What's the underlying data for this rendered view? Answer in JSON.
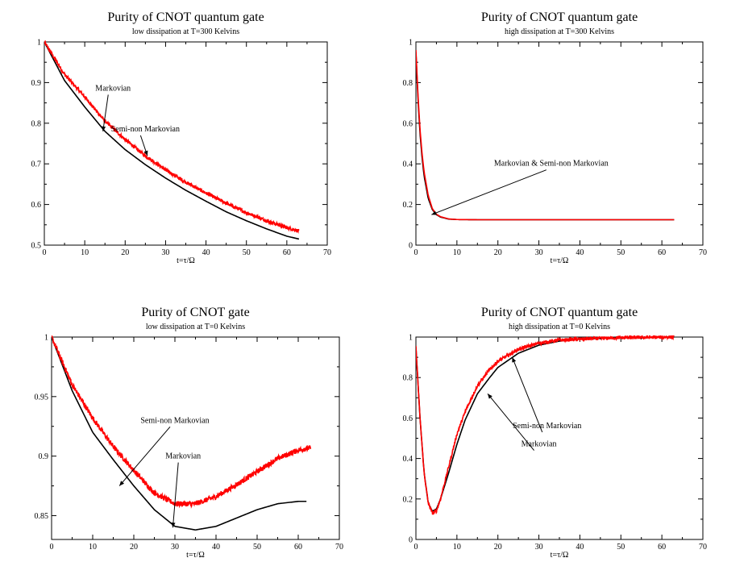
{
  "colors": {
    "markovian": "#000000",
    "semi_non_markovian": "#ff0000",
    "frame": "#000000"
  },
  "chart_data": [
    {
      "type": "line",
      "title": "Purity of CNOT quantum gate",
      "subtitle": "low dissipation at T=300 Kelvins",
      "xlabel": "t=τ/Ω",
      "ylabel": "",
      "xlim": [
        0,
        70
      ],
      "ylim": [
        0.5,
        1
      ],
      "xticks": [
        0,
        10,
        20,
        30,
        40,
        50,
        60,
        70
      ],
      "yticks": [
        0.5,
        0.6,
        0.7,
        0.8,
        0.9,
        1
      ],
      "ytick_labels": [
        "0.5",
        "0.6",
        "0.7",
        "0.8",
        "0.9",
        "1"
      ],
      "series": [
        {
          "name": "Markovian",
          "color": "#000000",
          "noise": 0,
          "x": [
            0,
            5,
            10,
            15,
            20,
            25,
            30,
            35,
            40,
            45,
            50,
            55,
            60,
            63
          ],
          "y": [
            1.0,
            0.905,
            0.84,
            0.78,
            0.735,
            0.698,
            0.665,
            0.635,
            0.608,
            0.582,
            0.56,
            0.54,
            0.522,
            0.515
          ]
        },
        {
          "name": "Semi-non Markovian",
          "color": "#ff0000",
          "noise": 0.004,
          "x": [
            0,
            5,
            10,
            15,
            20,
            25,
            30,
            35,
            40,
            45,
            50,
            55,
            60,
            63
          ],
          "y": [
            1.0,
            0.92,
            0.865,
            0.805,
            0.76,
            0.72,
            0.685,
            0.655,
            0.628,
            0.603,
            0.58,
            0.56,
            0.543,
            0.535
          ]
        }
      ],
      "annotations": [
        {
          "text": "Markovian",
          "text_xy": [
            17,
            0.88
          ],
          "arrow_to": [
            14.5,
            0.78
          ]
        },
        {
          "text": "Semi-non Markovian",
          "text_xy": [
            25,
            0.78
          ],
          "arrow_to": [
            25.5,
            0.72
          ]
        }
      ]
    },
    {
      "type": "line",
      "title": "Purity of CNOT quantum gate",
      "subtitle": "high dissipation at T=300 Kelvins",
      "xlabel": "t=τ/Ω",
      "ylabel": "",
      "xlim": [
        0,
        70
      ],
      "ylim": [
        0,
        1
      ],
      "xticks": [
        0,
        10,
        20,
        30,
        40,
        50,
        60,
        70
      ],
      "yticks": [
        0,
        0.2,
        0.4,
        0.6,
        0.8,
        1
      ],
      "ytick_labels": [
        "0",
        "0.2",
        "0.4",
        "0.6",
        "0.8",
        "1"
      ],
      "series": [
        {
          "name": "Markovian",
          "color": "#000000",
          "noise": 0,
          "x": [
            0,
            0.5,
            1,
            1.5,
            2,
            3,
            4,
            5,
            6,
            8,
            10,
            15,
            20,
            63
          ],
          "y": [
            0.95,
            0.72,
            0.55,
            0.43,
            0.34,
            0.23,
            0.175,
            0.15,
            0.138,
            0.128,
            0.126,
            0.125,
            0.125,
            0.125
          ]
        },
        {
          "name": "Semi-non Markovian",
          "color": "#ff0000",
          "noise": 0,
          "x": [
            0,
            0.5,
            1,
            1.5,
            2,
            3,
            4,
            5,
            6,
            8,
            10,
            15,
            20,
            63
          ],
          "y": [
            0.96,
            0.74,
            0.57,
            0.45,
            0.36,
            0.245,
            0.18,
            0.152,
            0.14,
            0.129,
            0.126,
            0.125,
            0.125,
            0.125
          ]
        }
      ],
      "annotations": [
        {
          "text": "Markovian & Semi-non Markovian",
          "text_xy": [
            33,
            0.39
          ],
          "arrow_to": [
            3.8,
            0.15
          ]
        }
      ]
    },
    {
      "type": "line",
      "title": "Purity of CNOT gate",
      "subtitle": "low dissipation at T=0 Kelvins",
      "xlabel": "t=τ/Ω",
      "ylabel": "",
      "xlim": [
        0,
        70
      ],
      "ylim": [
        0.83,
        1
      ],
      "xticks": [
        0,
        10,
        20,
        30,
        40,
        50,
        60,
        70
      ],
      "yticks": [
        0.85,
        0.9,
        0.95,
        1
      ],
      "ytick_labels": [
        "0.85",
        "0.9",
        "0.95",
        "1"
      ],
      "series": [
        {
          "name": "Markovian",
          "color": "#000000",
          "noise": 0,
          "x": [
            0,
            5,
            10,
            15,
            20,
            25,
            30,
            35,
            40,
            45,
            50,
            55,
            60,
            62
          ],
          "y": [
            1.0,
            0.955,
            0.92,
            0.897,
            0.875,
            0.855,
            0.841,
            0.838,
            0.841,
            0.848,
            0.855,
            0.86,
            0.862,
            0.862
          ]
        },
        {
          "name": "Semi-non Markovian",
          "color": "#ff0000",
          "noise": 0.0022,
          "x": [
            0,
            5,
            10,
            15,
            20,
            25,
            30,
            35,
            40,
            45,
            50,
            55,
            60,
            63
          ],
          "y": [
            1.0,
            0.96,
            0.932,
            0.908,
            0.888,
            0.869,
            0.86,
            0.86,
            0.866,
            0.876,
            0.887,
            0.898,
            0.905,
            0.907
          ]
        }
      ],
      "annotations": [
        {
          "text": "Semi-non Markovian",
          "text_xy": [
            30,
            0.928
          ],
          "arrow_to": [
            16.5,
            0.875
          ]
        },
        {
          "text": "Markovian",
          "text_xy": [
            32,
            0.898
          ],
          "arrow_to": [
            29.5,
            0.84
          ]
        }
      ]
    },
    {
      "type": "line",
      "title": "Purity of CNOT quantum gate",
      "subtitle": "high dissipation at T=0 Kelvins",
      "xlabel": "t=τ/Ω",
      "ylabel": "",
      "xlim": [
        0,
        70
      ],
      "ylim": [
        0,
        1
      ],
      "xticks": [
        0,
        10,
        20,
        30,
        40,
        50,
        60,
        70
      ],
      "yticks": [
        0,
        0.2,
        0.4,
        0.6,
        0.8,
        1
      ],
      "ytick_labels": [
        "0",
        "0.2",
        "0.4",
        "0.6",
        "0.8",
        "1"
      ],
      "series": [
        {
          "name": "Markovian",
          "color": "#000000",
          "noise": 0,
          "x": [
            0,
            1,
            2,
            3,
            4,
            5,
            6,
            8,
            10,
            12,
            15,
            18,
            20,
            25,
            30,
            35,
            40,
            50,
            63
          ],
          "y": [
            0.95,
            0.6,
            0.33,
            0.18,
            0.14,
            0.15,
            0.2,
            0.33,
            0.47,
            0.59,
            0.72,
            0.8,
            0.85,
            0.92,
            0.96,
            0.98,
            0.99,
            0.997,
            1.0
          ]
        },
        {
          "name": "Semi-non Markovian",
          "color": "#ff0000",
          "noise": 0.008,
          "x": [
            0,
            1,
            2,
            3,
            4,
            5,
            6,
            8,
            10,
            12,
            15,
            18,
            20,
            25,
            30,
            35,
            40,
            50,
            63
          ],
          "y": [
            0.95,
            0.6,
            0.33,
            0.18,
            0.13,
            0.14,
            0.2,
            0.36,
            0.52,
            0.63,
            0.76,
            0.84,
            0.88,
            0.94,
            0.97,
            0.985,
            0.99,
            0.997,
            1.0
          ]
        }
      ],
      "annotations": [
        {
          "text": "Semi-non Markovian",
          "text_xy": [
            32,
            0.55
          ],
          "arrow_to": [
            23.5,
            0.9
          ]
        },
        {
          "text": "Markovian",
          "text_xy": [
            30,
            0.46
          ],
          "arrow_to": [
            17.5,
            0.72
          ]
        }
      ]
    }
  ]
}
